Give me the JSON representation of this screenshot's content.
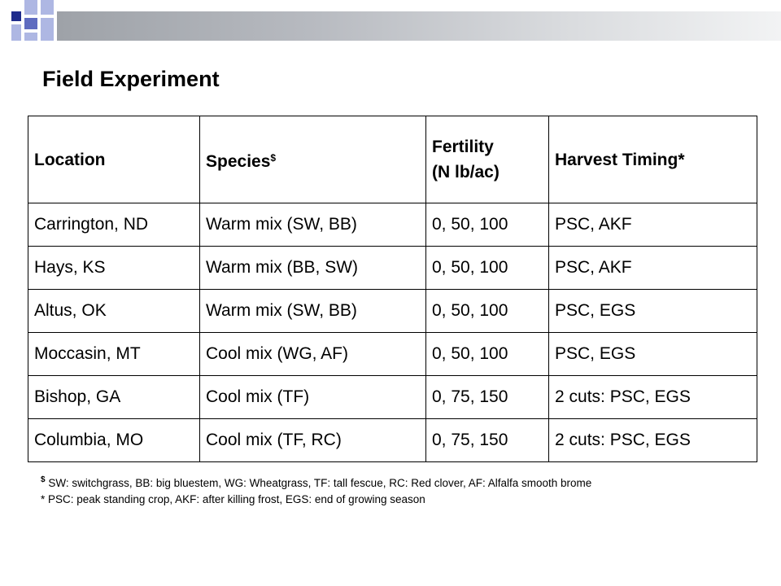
{
  "slide": {
    "title": "Field Experiment"
  },
  "table": {
    "headers": {
      "location": "Location",
      "species": "Species",
      "species_marker": "$",
      "fertility_line1": "Fertility",
      "fertility_line2": "(N lb/ac)",
      "harvest": "Harvest Timing*"
    },
    "rows": [
      {
        "location": "Carrington, ND",
        "species": "Warm mix (SW, BB)",
        "fertility": "0, 50, 100",
        "harvest": "PSC, AKF"
      },
      {
        "location": "Hays, KS",
        "species": "Warm mix (BB, SW)",
        "fertility": "0, 50, 100",
        "harvest": "PSC, AKF"
      },
      {
        "location": "Altus, OK",
        "species": "Warm mix (SW, BB)",
        "fertility": "0, 50, 100",
        "harvest": "PSC, EGS"
      },
      {
        "location": "Moccasin, MT",
        "species": "Cool mix (WG, AF)",
        "fertility": "0, 50, 100",
        "harvest": "PSC, EGS"
      },
      {
        "location": "Bishop, GA",
        "species": "Cool mix (TF)",
        "fertility": "0, 75, 150",
        "harvest": "2 cuts: PSC, EGS"
      },
      {
        "location": "Columbia, MO",
        "species": "Cool mix (TF, RC)",
        "fertility": "0, 75, 150",
        "harvest": "2 cuts: PSC, EGS"
      }
    ]
  },
  "footnotes": {
    "species_marker": "$",
    "species_text": " SW: switchgrass, BB: big bluestem, WG: Wheatgrass, TF: tall fescue, RC: Red clover, AF: Alfalfa smooth brome",
    "harvest_text": "* PSC: peak standing crop, AKF: after killing frost, EGS: end of growing season"
  },
  "colors": {
    "accent_dark": "#1f2c8c",
    "accent_light": "#aeb7e3",
    "bar_start": "#9ea2a8",
    "bar_end": "#f2f3f4"
  }
}
